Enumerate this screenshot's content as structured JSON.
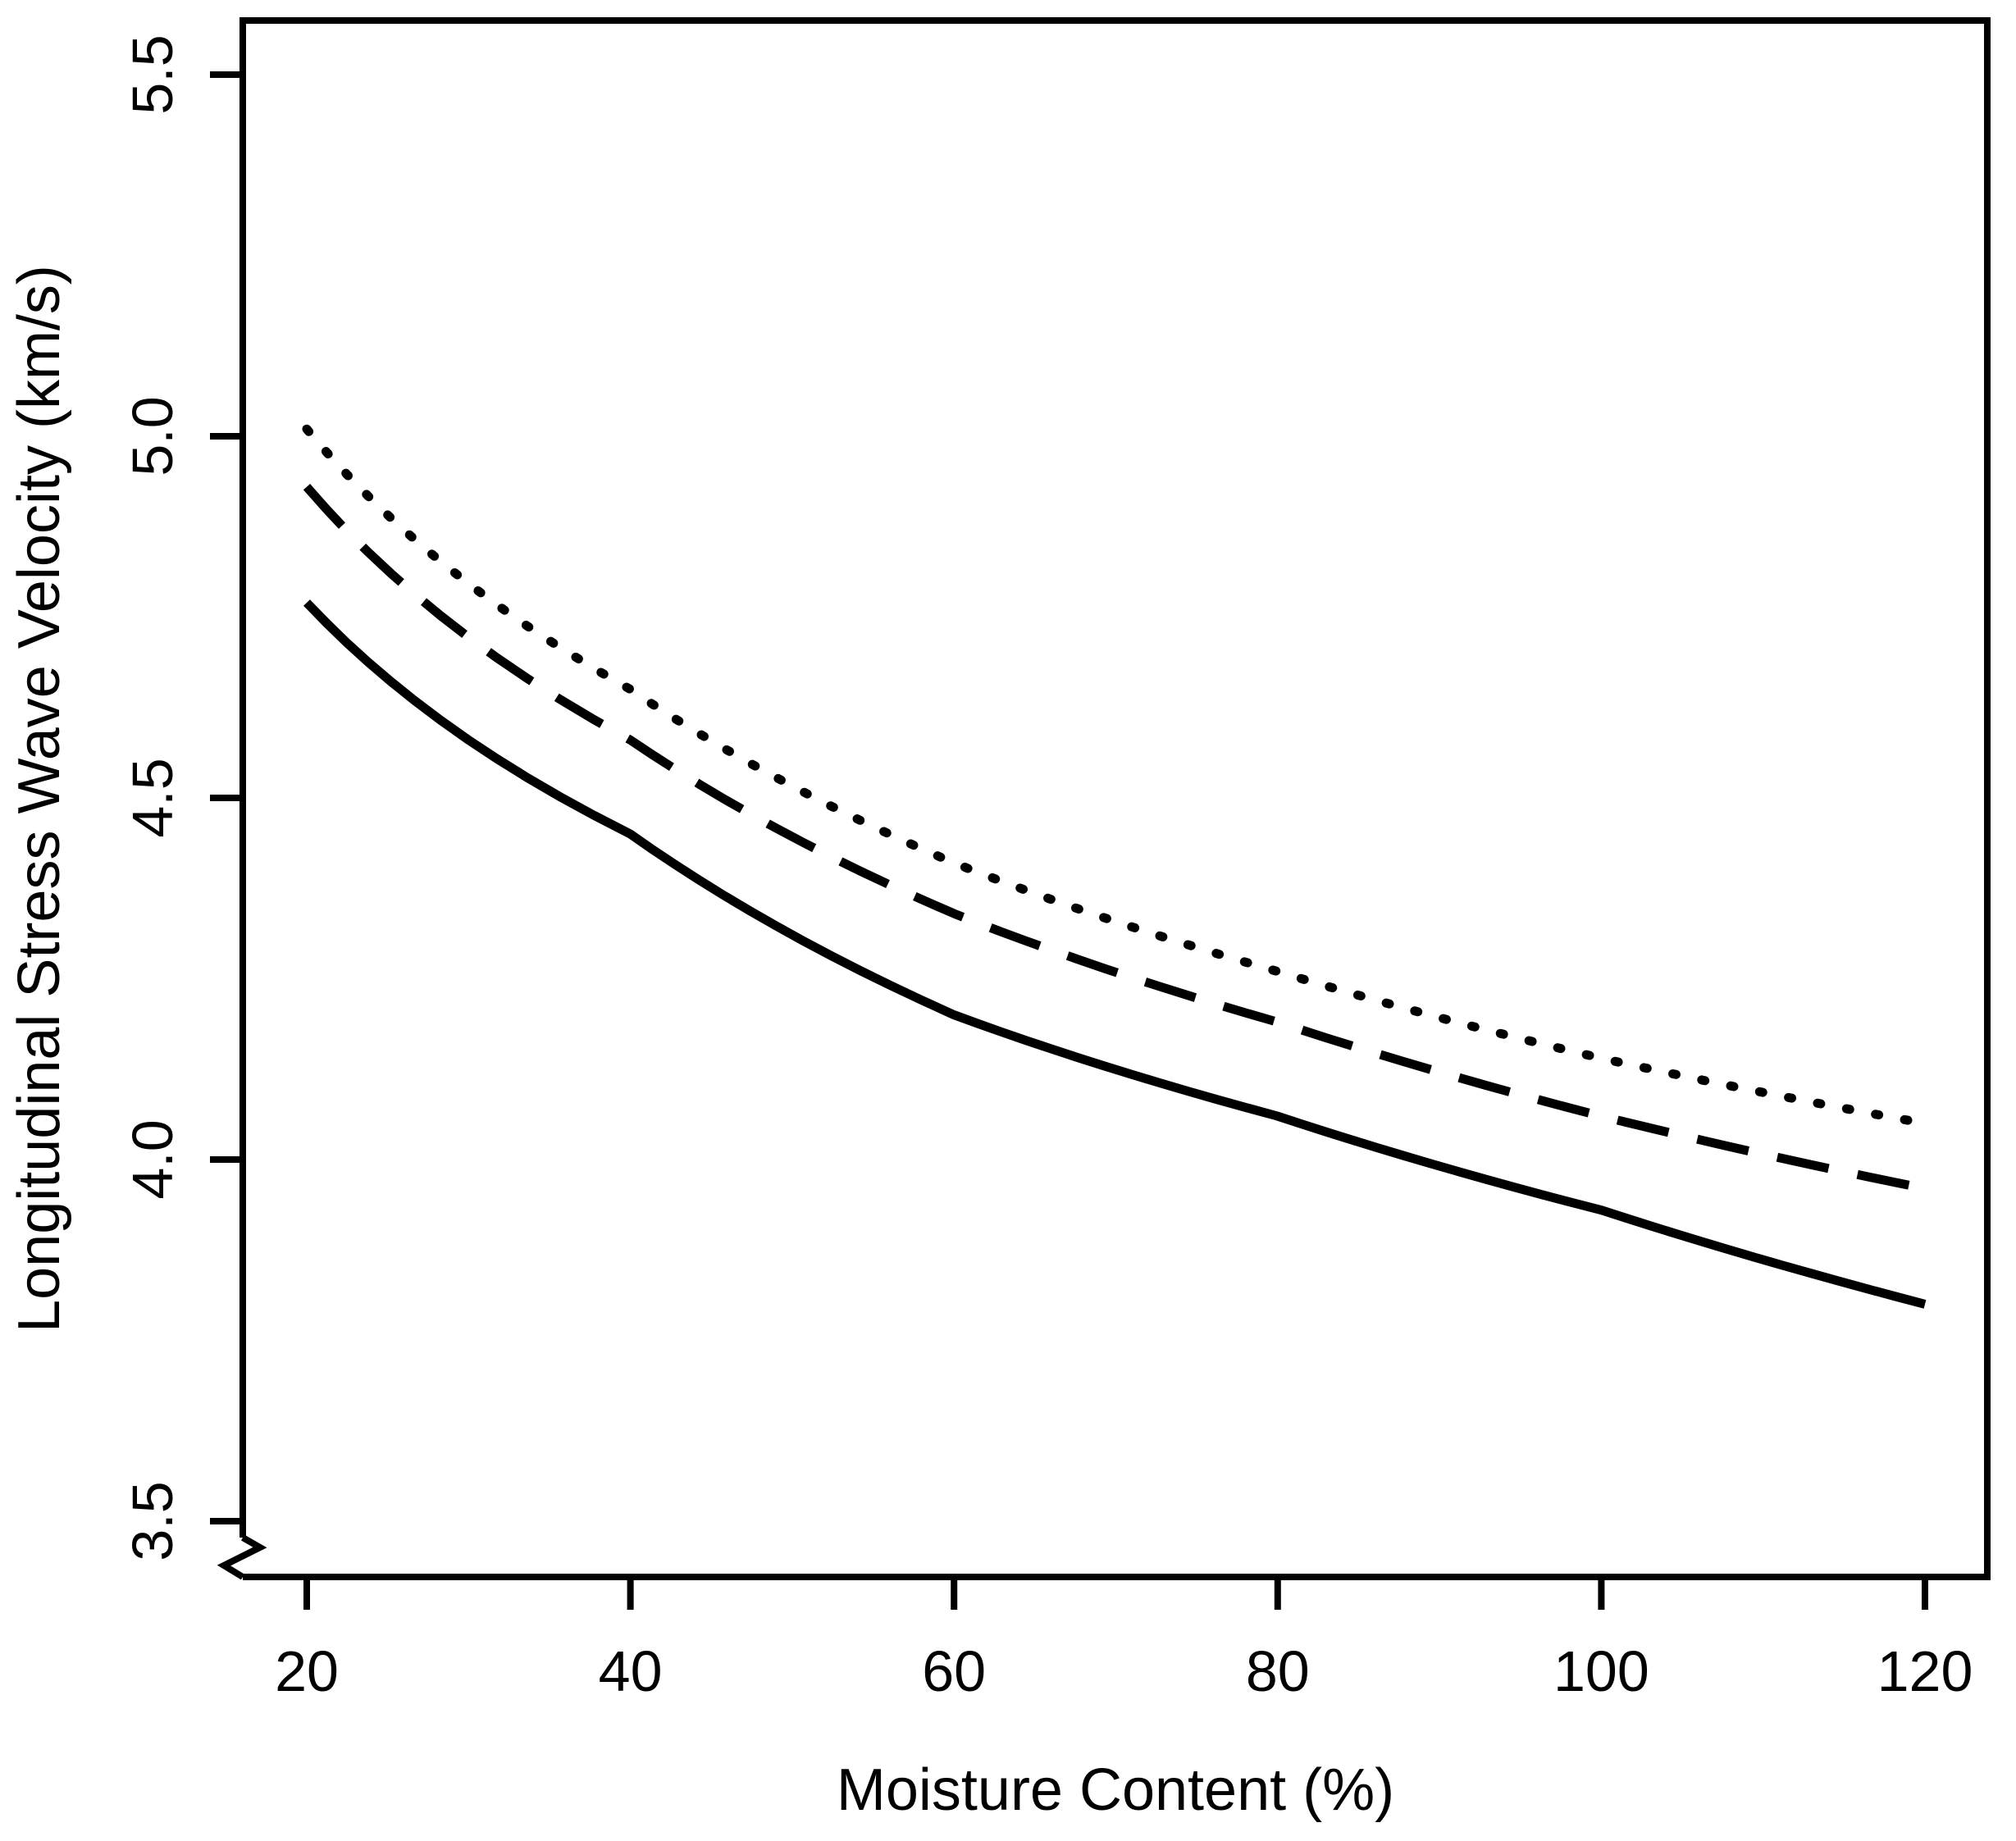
{
  "figure": {
    "background": "#ffffff",
    "line_color": "#000000"
  },
  "chart_data": {
    "type": "line",
    "title": "",
    "xlabel": "Moisture Content (%)",
    "ylabel": "Longitudinal Stress Wave Velocity (km/s)",
    "x_ticks": [
      20,
      40,
      60,
      80,
      100,
      120
    ],
    "x_tick_labels": [
      "20",
      "40",
      "60",
      "80",
      "100",
      "120"
    ],
    "y_ticks": [
      3.5,
      4.0,
      4.5,
      5.0,
      5.5
    ],
    "y_tick_labels": [
      "3.5",
      "4.0",
      "4.5",
      "5.0",
      "5.5"
    ],
    "xlim": [
      16,
      124
    ],
    "ylim": [
      3.42,
      5.58
    ],
    "y_axis_break": true,
    "grid": false,
    "legend": "none",
    "x": [
      20,
      40,
      60,
      80,
      100,
      120
    ],
    "series": [
      {
        "name": "solid-line",
        "style": "solid",
        "values": [
          4.77,
          4.45,
          4.2,
          4.06,
          3.93,
          3.8
        ]
      },
      {
        "name": "dashed-line",
        "style": "dashed",
        "values": [
          4.93,
          4.58,
          4.34,
          4.19,
          4.06,
          3.96
        ]
      },
      {
        "name": "dotted-line",
        "style": "dotted",
        "values": [
          5.01,
          4.65,
          4.41,
          4.26,
          4.14,
          4.05
        ]
      }
    ]
  }
}
